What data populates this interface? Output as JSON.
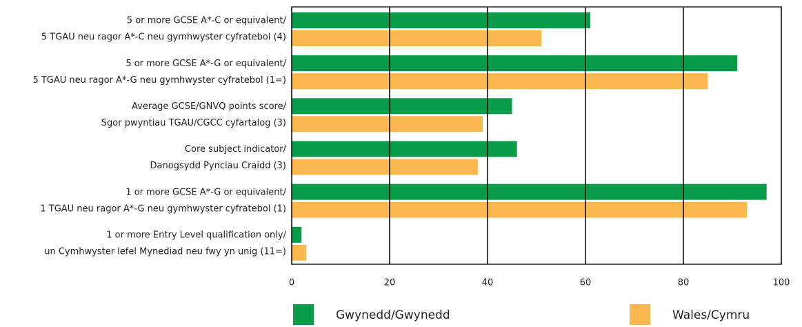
{
  "chart_data": {
    "type": "bar",
    "orientation": "horizontal",
    "categories": [
      [
        "5 or more GCSE A*-C or equivalent/",
        "5 TGAU neu ragor A*-C neu gymhwyster cyfratebol (4)"
      ],
      [
        "5 or more GCSE A*-G or equivalent/",
        "5 TGAU neu ragor A*-G neu gymhwyster cyfratebol (1=)"
      ],
      [
        "Average GCSE/GNVQ points score/",
        "Sgor pwyntiau TGAU/CGCC cyfartalog (3)"
      ],
      [
        "Core subject indicator/",
        "Danogsydd Pynciau Craidd (3)"
      ],
      [
        "1 or more GCSE A*-G or equivalent/",
        "1 TGAU neu ragor A*-G neu gymhwyster cyfratebol (1)"
      ],
      [
        "1 or more Entry Level qualification only/",
        "un Cymhwyster lefel Mynediad neu fwy yn unig (11=)"
      ]
    ],
    "series": [
      {
        "name": "Gwynedd/Gwynedd",
        "color": "#0a9b48",
        "values": [
          61,
          91,
          45,
          46,
          97,
          2
        ]
      },
      {
        "name": "Wales/Cymru",
        "color": "#fbb84e",
        "values": [
          51,
          85,
          39,
          38,
          93,
          3
        ]
      }
    ],
    "xlim": [
      0,
      100
    ],
    "xticks": [
      0,
      20,
      40,
      60,
      80,
      100
    ],
    "grid": true
  }
}
